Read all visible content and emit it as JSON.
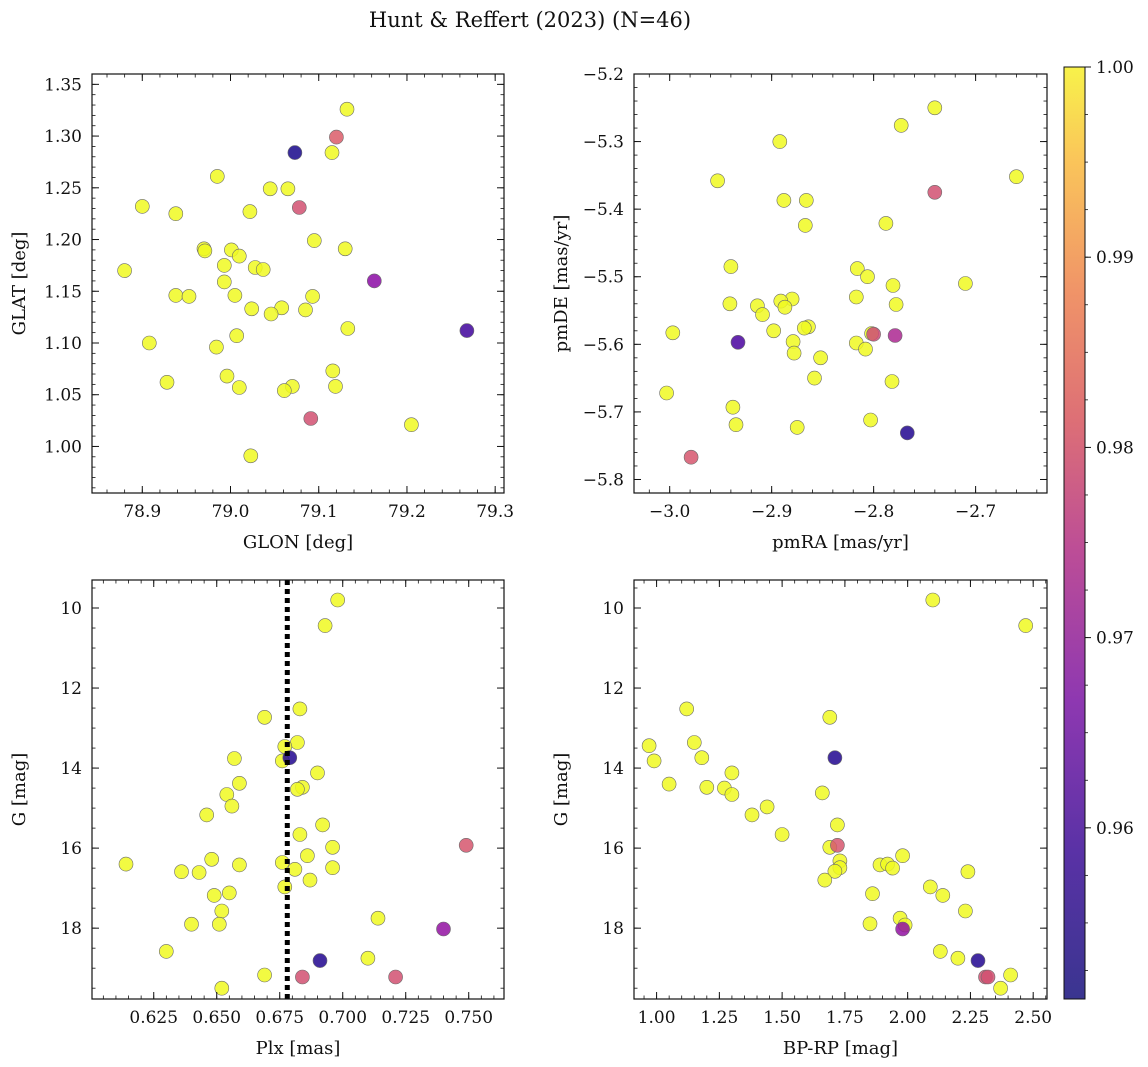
{
  "title": "Hunt & Reffert (2023) (N=46)",
  "colors": {
    "colormap": "plasma",
    "marker_edge": "#6b6b6b",
    "vline": "#000000"
  },
  "colorbar": {
    "min": 0.951,
    "max": 1.0,
    "ticks": [
      0.96,
      0.97,
      0.98,
      0.99,
      1.0
    ],
    "tick_labels": [
      "0.96",
      "0.97",
      "0.98",
      "0.99",
      "1.00"
    ]
  },
  "chart_data": [
    {
      "type": "scatter",
      "id": "glon-glat",
      "xlabel": "GLON [deg]",
      "ylabel": "GLAT [deg]",
      "xlim": [
        78.843,
        79.31
      ],
      "ylim": [
        0.955,
        1.36
      ],
      "invert_y": false,
      "xticks": [
        78.9,
        79.0,
        79.1,
        79.2,
        79.3
      ],
      "xtick_labels": [
        "78.9",
        "79.0",
        "79.1",
        "79.2",
        "79.3"
      ],
      "yticks": [
        1.0,
        1.05,
        1.1,
        1.15,
        1.2,
        1.25,
        1.3,
        1.35
      ],
      "ytick_labels": [
        "1.00",
        "1.05",
        "1.10",
        "1.15",
        "1.20",
        "1.25",
        "1.30",
        "1.35"
      ],
      "points": [
        {
          "x": 79.132,
          "y": 1.326,
          "c": 1.0
        },
        {
          "x": 79.115,
          "y": 1.284,
          "c": 1.0
        },
        {
          "x": 79.045,
          "y": 1.249,
          "c": 1.0
        },
        {
          "x": 79.065,
          "y": 1.249,
          "c": 1.0
        },
        {
          "x": 78.985,
          "y": 1.261,
          "c": 1.0
        },
        {
          "x": 78.9,
          "y": 1.232,
          "c": 1.0
        },
        {
          "x": 78.938,
          "y": 1.225,
          "c": 1.0
        },
        {
          "x": 79.022,
          "y": 1.227,
          "c": 1.0
        },
        {
          "x": 79.095,
          "y": 1.199,
          "c": 1.0
        },
        {
          "x": 79.13,
          "y": 1.191,
          "c": 1.0
        },
        {
          "x": 78.97,
          "y": 1.191,
          "c": 1.0
        },
        {
          "x": 78.971,
          "y": 1.189,
          "c": 1.0
        },
        {
          "x": 79.001,
          "y": 1.19,
          "c": 1.0
        },
        {
          "x": 79.01,
          "y": 1.184,
          "c": 1.0
        },
        {
          "x": 78.993,
          "y": 1.175,
          "c": 1.0
        },
        {
          "x": 79.028,
          "y": 1.173,
          "c": 1.0
        },
        {
          "x": 79.037,
          "y": 1.171,
          "c": 1.0
        },
        {
          "x": 78.88,
          "y": 1.17,
          "c": 1.0
        },
        {
          "x": 78.993,
          "y": 1.159,
          "c": 1.0
        },
        {
          "x": 78.938,
          "y": 1.146,
          "c": 1.0
        },
        {
          "x": 78.953,
          "y": 1.145,
          "c": 1.0
        },
        {
          "x": 79.005,
          "y": 1.146,
          "c": 1.0
        },
        {
          "x": 79.093,
          "y": 1.145,
          "c": 1.0
        },
        {
          "x": 79.024,
          "y": 1.133,
          "c": 1.0
        },
        {
          "x": 79.058,
          "y": 1.134,
          "c": 1.0
        },
        {
          "x": 79.085,
          "y": 1.132,
          "c": 1.0
        },
        {
          "x": 79.046,
          "y": 1.128,
          "c": 1.0
        },
        {
          "x": 79.133,
          "y": 1.114,
          "c": 1.0
        },
        {
          "x": 79.007,
          "y": 1.107,
          "c": 1.0
        },
        {
          "x": 78.908,
          "y": 1.1,
          "c": 1.0
        },
        {
          "x": 78.984,
          "y": 1.096,
          "c": 1.0
        },
        {
          "x": 79.116,
          "y": 1.073,
          "c": 1.0
        },
        {
          "x": 78.996,
          "y": 1.068,
          "c": 1.0
        },
        {
          "x": 78.928,
          "y": 1.062,
          "c": 1.0
        },
        {
          "x": 79.01,
          "y": 1.057,
          "c": 1.0
        },
        {
          "x": 79.07,
          "y": 1.058,
          "c": 1.0
        },
        {
          "x": 79.119,
          "y": 1.058,
          "c": 1.0
        },
        {
          "x": 79.061,
          "y": 1.054,
          "c": 1.0
        },
        {
          "x": 79.205,
          "y": 1.021,
          "c": 1.0
        },
        {
          "x": 79.023,
          "y": 0.991,
          "c": 1.0
        },
        {
          "x": 79.073,
          "y": 1.284,
          "c": 0.952
        },
        {
          "x": 79.12,
          "y": 1.299,
          "c": 0.979
        },
        {
          "x": 79.078,
          "y": 1.231,
          "c": 0.977
        },
        {
          "x": 79.163,
          "y": 1.16,
          "c": 0.965
        },
        {
          "x": 79.268,
          "y": 1.112,
          "c": 0.956
        },
        {
          "x": 79.091,
          "y": 1.027,
          "c": 0.977
        }
      ]
    },
    {
      "type": "scatter",
      "id": "pmra-pmde",
      "xlabel": "pmRA [mas/yr]",
      "ylabel": "pmDE [mas/yr]",
      "xlim": [
        -3.035,
        -2.63
      ],
      "ylim": [
        -5.82,
        -5.2
      ],
      "invert_y": false,
      "xticks": [
        -3.0,
        -2.9,
        -2.8,
        -2.7
      ],
      "xtick_labels": [
        "−3.0",
        "−2.9",
        "−2.8",
        "−2.7"
      ],
      "yticks": [
        -5.8,
        -5.7,
        -5.6,
        -5.5,
        -5.4,
        -5.3,
        -5.2
      ],
      "ytick_labels": [
        "−5.8",
        "−5.7",
        "−5.6",
        "−5.5",
        "−5.4",
        "−5.3",
        "−5.2"
      ],
      "points": [
        {
          "x": -2.74,
          "y": -5.25,
          "c": 1.0
        },
        {
          "x": -2.773,
          "y": -5.276,
          "c": 1.0
        },
        {
          "x": -2.892,
          "y": -5.3,
          "c": 1.0
        },
        {
          "x": -2.953,
          "y": -5.358,
          "c": 1.0
        },
        {
          "x": -2.66,
          "y": -5.352,
          "c": 1.0
        },
        {
          "x": -2.888,
          "y": -5.387,
          "c": 1.0
        },
        {
          "x": -2.866,
          "y": -5.387,
          "c": 1.0
        },
        {
          "x": -2.788,
          "y": -5.421,
          "c": 1.0
        },
        {
          "x": -2.867,
          "y": -5.424,
          "c": 1.0
        },
        {
          "x": -2.94,
          "y": -5.485,
          "c": 1.0
        },
        {
          "x": -2.816,
          "y": -5.488,
          "c": 1.0
        },
        {
          "x": -2.806,
          "y": -5.5,
          "c": 1.0
        },
        {
          "x": -2.71,
          "y": -5.51,
          "c": 1.0
        },
        {
          "x": -2.781,
          "y": -5.513,
          "c": 1.0
        },
        {
          "x": -2.817,
          "y": -5.53,
          "c": 1.0
        },
        {
          "x": -2.88,
          "y": -5.533,
          "c": 1.0
        },
        {
          "x": -2.891,
          "y": -5.536,
          "c": 1.0
        },
        {
          "x": -2.941,
          "y": -5.54,
          "c": 1.0
        },
        {
          "x": -2.778,
          "y": -5.541,
          "c": 1.0
        },
        {
          "x": -2.914,
          "y": -5.543,
          "c": 1.0
        },
        {
          "x": -2.887,
          "y": -5.545,
          "c": 1.0
        },
        {
          "x": -2.909,
          "y": -5.556,
          "c": 1.0
        },
        {
          "x": -2.864,
          "y": -5.574,
          "c": 1.0
        },
        {
          "x": -2.868,
          "y": -5.576,
          "c": 1.0
        },
        {
          "x": -2.898,
          "y": -5.58,
          "c": 1.0
        },
        {
          "x": -2.997,
          "y": -5.583,
          "c": 1.0
        },
        {
          "x": -2.802,
          "y": -5.584,
          "c": 1.0
        },
        {
          "x": -2.879,
          "y": -5.596,
          "c": 1.0
        },
        {
          "x": -2.817,
          "y": -5.598,
          "c": 1.0
        },
        {
          "x": -2.808,
          "y": -5.607,
          "c": 1.0
        },
        {
          "x": -2.878,
          "y": -5.613,
          "c": 1.0
        },
        {
          "x": -2.852,
          "y": -5.62,
          "c": 1.0
        },
        {
          "x": -2.858,
          "y": -5.65,
          "c": 1.0
        },
        {
          "x": -2.782,
          "y": -5.655,
          "c": 1.0
        },
        {
          "x": -3.003,
          "y": -5.672,
          "c": 1.0
        },
        {
          "x": -2.938,
          "y": -5.693,
          "c": 1.0
        },
        {
          "x": -2.803,
          "y": -5.712,
          "c": 1.0
        },
        {
          "x": -2.935,
          "y": -5.719,
          "c": 1.0
        },
        {
          "x": -2.875,
          "y": -5.723,
          "c": 1.0
        },
        {
          "x": -2.8,
          "y": -5.585,
          "c": 0.976
        },
        {
          "x": -2.74,
          "y": -5.375,
          "c": 0.977
        },
        {
          "x": -2.779,
          "y": -5.587,
          "c": 0.97
        },
        {
          "x": -2.933,
          "y": -5.597,
          "c": 0.957
        },
        {
          "x": -2.767,
          "y": -5.731,
          "c": 0.953
        },
        {
          "x": -2.979,
          "y": -5.767,
          "c": 0.978
        }
      ]
    },
    {
      "type": "scatter",
      "id": "plx-g",
      "xlabel": "Plx [mas]",
      "ylabel": "G [mag]",
      "xlim": [
        0.6005,
        0.764
      ],
      "ylim": [
        19.77,
        9.3
      ],
      "invert_y": true,
      "vline": {
        "x": 0.678,
        "style": "dotted"
      },
      "xticks": [
        0.625,
        0.65,
        0.675,
        0.7,
        0.725,
        0.75
      ],
      "xtick_labels": [
        "0.625",
        "0.650",
        "0.675",
        "0.700",
        "0.725",
        "0.750"
      ],
      "yticks": [
        10,
        12,
        14,
        16,
        18
      ],
      "ytick_labels": [
        "10",
        "12",
        "14",
        "16",
        "18"
      ],
      "points": [
        {
          "x": 0.698,
          "y": 9.8,
          "c": 1.0
        },
        {
          "x": 0.693,
          "y": 10.44,
          "c": 1.0
        },
        {
          "x": 0.683,
          "y": 12.52,
          "c": 1.0
        },
        {
          "x": 0.669,
          "y": 12.73,
          "c": 1.0
        },
        {
          "x": 0.682,
          "y": 13.36,
          "c": 1.0
        },
        {
          "x": 0.677,
          "y": 13.46,
          "c": 1.0
        },
        {
          "x": 0.657,
          "y": 13.76,
          "c": 1.0
        },
        {
          "x": 0.676,
          "y": 13.82,
          "c": 1.0
        },
        {
          "x": 0.69,
          "y": 14.12,
          "c": 1.0
        },
        {
          "x": 0.659,
          "y": 14.38,
          "c": 1.0
        },
        {
          "x": 0.684,
          "y": 14.48,
          "c": 1.0
        },
        {
          "x": 0.682,
          "y": 14.53,
          "c": 1.0
        },
        {
          "x": 0.654,
          "y": 14.66,
          "c": 1.0
        },
        {
          "x": 0.656,
          "y": 14.95,
          "c": 1.0
        },
        {
          "x": 0.646,
          "y": 15.17,
          "c": 1.0
        },
        {
          "x": 0.692,
          "y": 15.42,
          "c": 1.0
        },
        {
          "x": 0.683,
          "y": 15.66,
          "c": 1.0
        },
        {
          "x": 0.696,
          "y": 15.98,
          "c": 1.0
        },
        {
          "x": 0.686,
          "y": 16.19,
          "c": 1.0
        },
        {
          "x": 0.648,
          "y": 16.28,
          "c": 1.0
        },
        {
          "x": 0.676,
          "y": 16.36,
          "c": 1.0
        },
        {
          "x": 0.614,
          "y": 16.4,
          "c": 1.0
        },
        {
          "x": 0.659,
          "y": 16.42,
          "c": 1.0
        },
        {
          "x": 0.696,
          "y": 16.49,
          "c": 1.0
        },
        {
          "x": 0.681,
          "y": 16.53,
          "c": 1.0
        },
        {
          "x": 0.636,
          "y": 16.59,
          "c": 1.0
        },
        {
          "x": 0.643,
          "y": 16.61,
          "c": 1.0
        },
        {
          "x": 0.687,
          "y": 16.8,
          "c": 1.0
        },
        {
          "x": 0.677,
          "y": 16.97,
          "c": 1.0
        },
        {
          "x": 0.655,
          "y": 17.12,
          "c": 1.0
        },
        {
          "x": 0.649,
          "y": 17.18,
          "c": 1.0
        },
        {
          "x": 0.652,
          "y": 17.57,
          "c": 1.0
        },
        {
          "x": 0.714,
          "y": 17.75,
          "c": 1.0
        },
        {
          "x": 0.64,
          "y": 17.9,
          "c": 1.0
        },
        {
          "x": 0.651,
          "y": 17.9,
          "c": 1.0
        },
        {
          "x": 0.63,
          "y": 18.58,
          "c": 1.0
        },
        {
          "x": 0.71,
          "y": 18.75,
          "c": 1.0
        },
        {
          "x": 0.669,
          "y": 19.17,
          "c": 1.0
        },
        {
          "x": 0.652,
          "y": 19.5,
          "c": 1.0
        },
        {
          "x": 0.679,
          "y": 13.74,
          "c": 0.953
        },
        {
          "x": 0.749,
          "y": 15.93,
          "c": 0.978
        },
        {
          "x": 0.74,
          "y": 18.02,
          "c": 0.966
        },
        {
          "x": 0.691,
          "y": 18.81,
          "c": 0.953
        },
        {
          "x": 0.684,
          "y": 19.22,
          "c": 0.977
        },
        {
          "x": 0.721,
          "y": 19.22,
          "c": 0.977
        }
      ]
    },
    {
      "type": "scatter",
      "id": "bprp-g",
      "xlabel": "BP-RP [mag]",
      "ylabel": "G [mag]",
      "xlim": [
        0.91,
        2.555
      ],
      "ylim": [
        19.77,
        9.3
      ],
      "invert_y": true,
      "xticks": [
        1.0,
        1.25,
        1.5,
        1.75,
        2.0,
        2.25,
        2.5
      ],
      "xtick_labels": [
        "1.00",
        "1.25",
        "1.50",
        "1.75",
        "2.00",
        "2.25",
        "2.50"
      ],
      "yticks": [
        10,
        12,
        14,
        16,
        18
      ],
      "ytick_labels": [
        "10",
        "12",
        "14",
        "16",
        "18"
      ],
      "points": [
        {
          "x": 2.1,
          "y": 9.8,
          "c": 1.0
        },
        {
          "x": 2.47,
          "y": 10.44,
          "c": 1.0
        },
        {
          "x": 1.12,
          "y": 12.52,
          "c": 1.0
        },
        {
          "x": 1.69,
          "y": 12.73,
          "c": 1.0
        },
        {
          "x": 1.15,
          "y": 13.36,
          "c": 1.0
        },
        {
          "x": 0.97,
          "y": 13.44,
          "c": 1.0
        },
        {
          "x": 1.18,
          "y": 13.74,
          "c": 1.0
        },
        {
          "x": 0.99,
          "y": 13.82,
          "c": 1.0
        },
        {
          "x": 1.3,
          "y": 14.12,
          "c": 1.0
        },
        {
          "x": 1.05,
          "y": 14.4,
          "c": 1.0
        },
        {
          "x": 1.2,
          "y": 14.48,
          "c": 1.0
        },
        {
          "x": 1.27,
          "y": 14.5,
          "c": 1.0
        },
        {
          "x": 1.3,
          "y": 14.66,
          "c": 1.0
        },
        {
          "x": 1.66,
          "y": 14.62,
          "c": 1.0
        },
        {
          "x": 1.44,
          "y": 14.97,
          "c": 1.0
        },
        {
          "x": 1.38,
          "y": 15.17,
          "c": 1.0
        },
        {
          "x": 1.72,
          "y": 15.42,
          "c": 1.0
        },
        {
          "x": 1.5,
          "y": 15.66,
          "c": 1.0
        },
        {
          "x": 1.69,
          "y": 15.98,
          "c": 1.0
        },
        {
          "x": 1.98,
          "y": 16.19,
          "c": 1.0
        },
        {
          "x": 1.73,
          "y": 16.32,
          "c": 1.0
        },
        {
          "x": 1.89,
          "y": 16.42,
          "c": 1.0
        },
        {
          "x": 1.92,
          "y": 16.4,
          "c": 1.0
        },
        {
          "x": 1.73,
          "y": 16.49,
          "c": 1.0
        },
        {
          "x": 1.94,
          "y": 16.5,
          "c": 1.0
        },
        {
          "x": 1.71,
          "y": 16.58,
          "c": 1.0
        },
        {
          "x": 2.24,
          "y": 16.59,
          "c": 1.0
        },
        {
          "x": 1.67,
          "y": 16.8,
          "c": 1.0
        },
        {
          "x": 2.09,
          "y": 16.97,
          "c": 1.0
        },
        {
          "x": 1.86,
          "y": 17.14,
          "c": 1.0
        },
        {
          "x": 2.14,
          "y": 17.18,
          "c": 1.0
        },
        {
          "x": 2.23,
          "y": 17.57,
          "c": 1.0
        },
        {
          "x": 1.97,
          "y": 17.75,
          "c": 1.0
        },
        {
          "x": 1.85,
          "y": 17.89,
          "c": 1.0
        },
        {
          "x": 1.99,
          "y": 17.92,
          "c": 1.0
        },
        {
          "x": 2.13,
          "y": 18.58,
          "c": 1.0
        },
        {
          "x": 2.2,
          "y": 18.75,
          "c": 1.0
        },
        {
          "x": 2.41,
          "y": 19.17,
          "c": 1.0
        },
        {
          "x": 2.37,
          "y": 19.5,
          "c": 1.0
        },
        {
          "x": 1.71,
          "y": 13.74,
          "c": 0.953
        },
        {
          "x": 1.72,
          "y": 15.93,
          "c": 0.978
        },
        {
          "x": 1.98,
          "y": 18.02,
          "c": 0.966
        },
        {
          "x": 2.28,
          "y": 18.81,
          "c": 0.953
        },
        {
          "x": 2.31,
          "y": 19.22,
          "c": 0.977
        },
        {
          "x": 2.32,
          "y": 19.22,
          "c": 0.977
        }
      ]
    }
  ]
}
